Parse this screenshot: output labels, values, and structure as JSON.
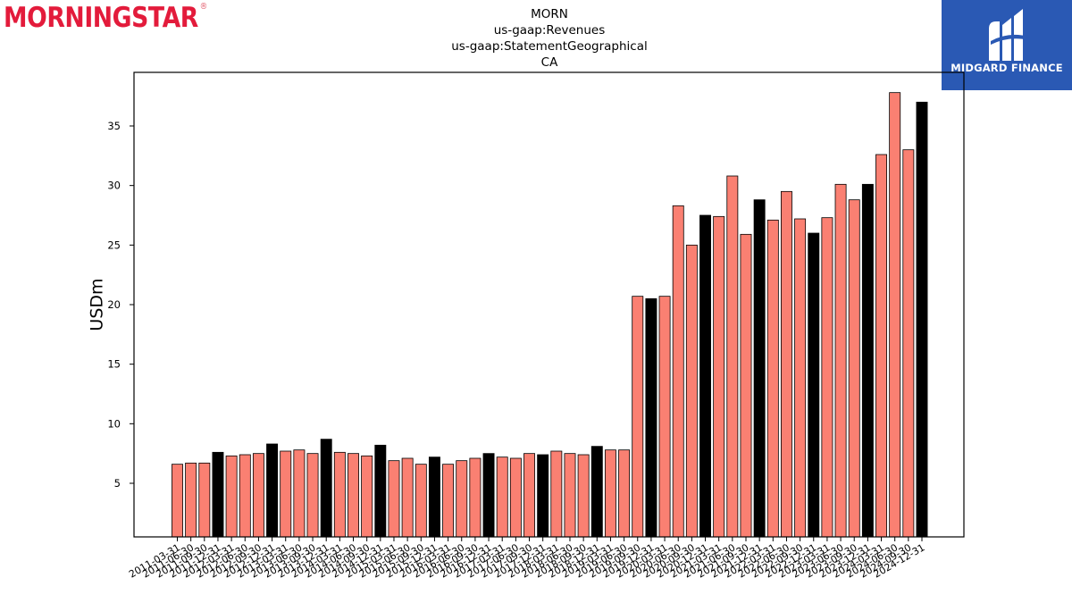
{
  "branding": {
    "morningstar_text": "MORNINGSTAR",
    "morningstar_mark": "®",
    "midgard_text": "MIDGARD FINANCE",
    "brand_color": "#e31b3b",
    "midgard_bg": "#2a59b4"
  },
  "chart_data": {
    "type": "bar",
    "title_lines": [
      "MORN",
      "us-gaap:Revenues",
      "us-gaap:StatementGeographical",
      "CA"
    ],
    "xlabel": "",
    "ylabel": "USDm",
    "ylim": [
      0.5,
      39.5
    ],
    "yticks": [
      5,
      10,
      15,
      20,
      25,
      30,
      35
    ],
    "grid": false,
    "colors": {
      "quarter": "#fa8072",
      "year_end": "#000000"
    },
    "categories": [
      "2011-03-31",
      "2011-06-30",
      "2011-09-30",
      "2011-12-31",
      "2012-03-31",
      "2012-06-30",
      "2012-09-30",
      "2012-12-31",
      "2013-03-31",
      "2013-06-30",
      "2013-09-30",
      "2013-12-31",
      "2014-03-31",
      "2014-06-30",
      "2014-09-30",
      "2014-12-31",
      "2015-03-31",
      "2015-06-30",
      "2015-09-30",
      "2015-12-31",
      "2016-03-31",
      "2016-06-30",
      "2016-09-30",
      "2016-12-31",
      "2017-03-31",
      "2017-06-30",
      "2017-09-30",
      "2017-12-31",
      "2018-03-31",
      "2018-06-30",
      "2018-09-30",
      "2018-12-31",
      "2019-03-31",
      "2019-06-30",
      "2019-09-30",
      "2019-12-31",
      "2020-03-31",
      "2020-06-30",
      "2020-09-30",
      "2020-12-31",
      "2021-03-31",
      "2021-06-30",
      "2021-09-30",
      "2021-12-31",
      "2022-03-31",
      "2022-06-30",
      "2022-09-30",
      "2022-12-31",
      "2023-03-31",
      "2023-06-30",
      "2023-09-30",
      "2023-12-31",
      "2024-03-31",
      "2024-06-30",
      "2024-09-30",
      "2024-12-31"
    ],
    "values": [
      6.6,
      6.7,
      6.7,
      7.6,
      7.3,
      7.4,
      7.5,
      8.3,
      7.7,
      7.8,
      7.5,
      8.7,
      7.6,
      7.5,
      7.3,
      8.2,
      6.9,
      7.1,
      6.6,
      7.2,
      6.6,
      6.9,
      7.1,
      7.5,
      7.2,
      7.1,
      7.5,
      7.4,
      7.7,
      7.5,
      7.4,
      8.1,
      7.8,
      7.8,
      20.7,
      20.5,
      20.7,
      28.3,
      25.0,
      27.5,
      27.4,
      30.8,
      25.9,
      28.8,
      27.1,
      29.5,
      27.2,
      26.0,
      27.3,
      30.1,
      28.8,
      30.1,
      32.6,
      37.8,
      33.0,
      37.0
    ]
  }
}
